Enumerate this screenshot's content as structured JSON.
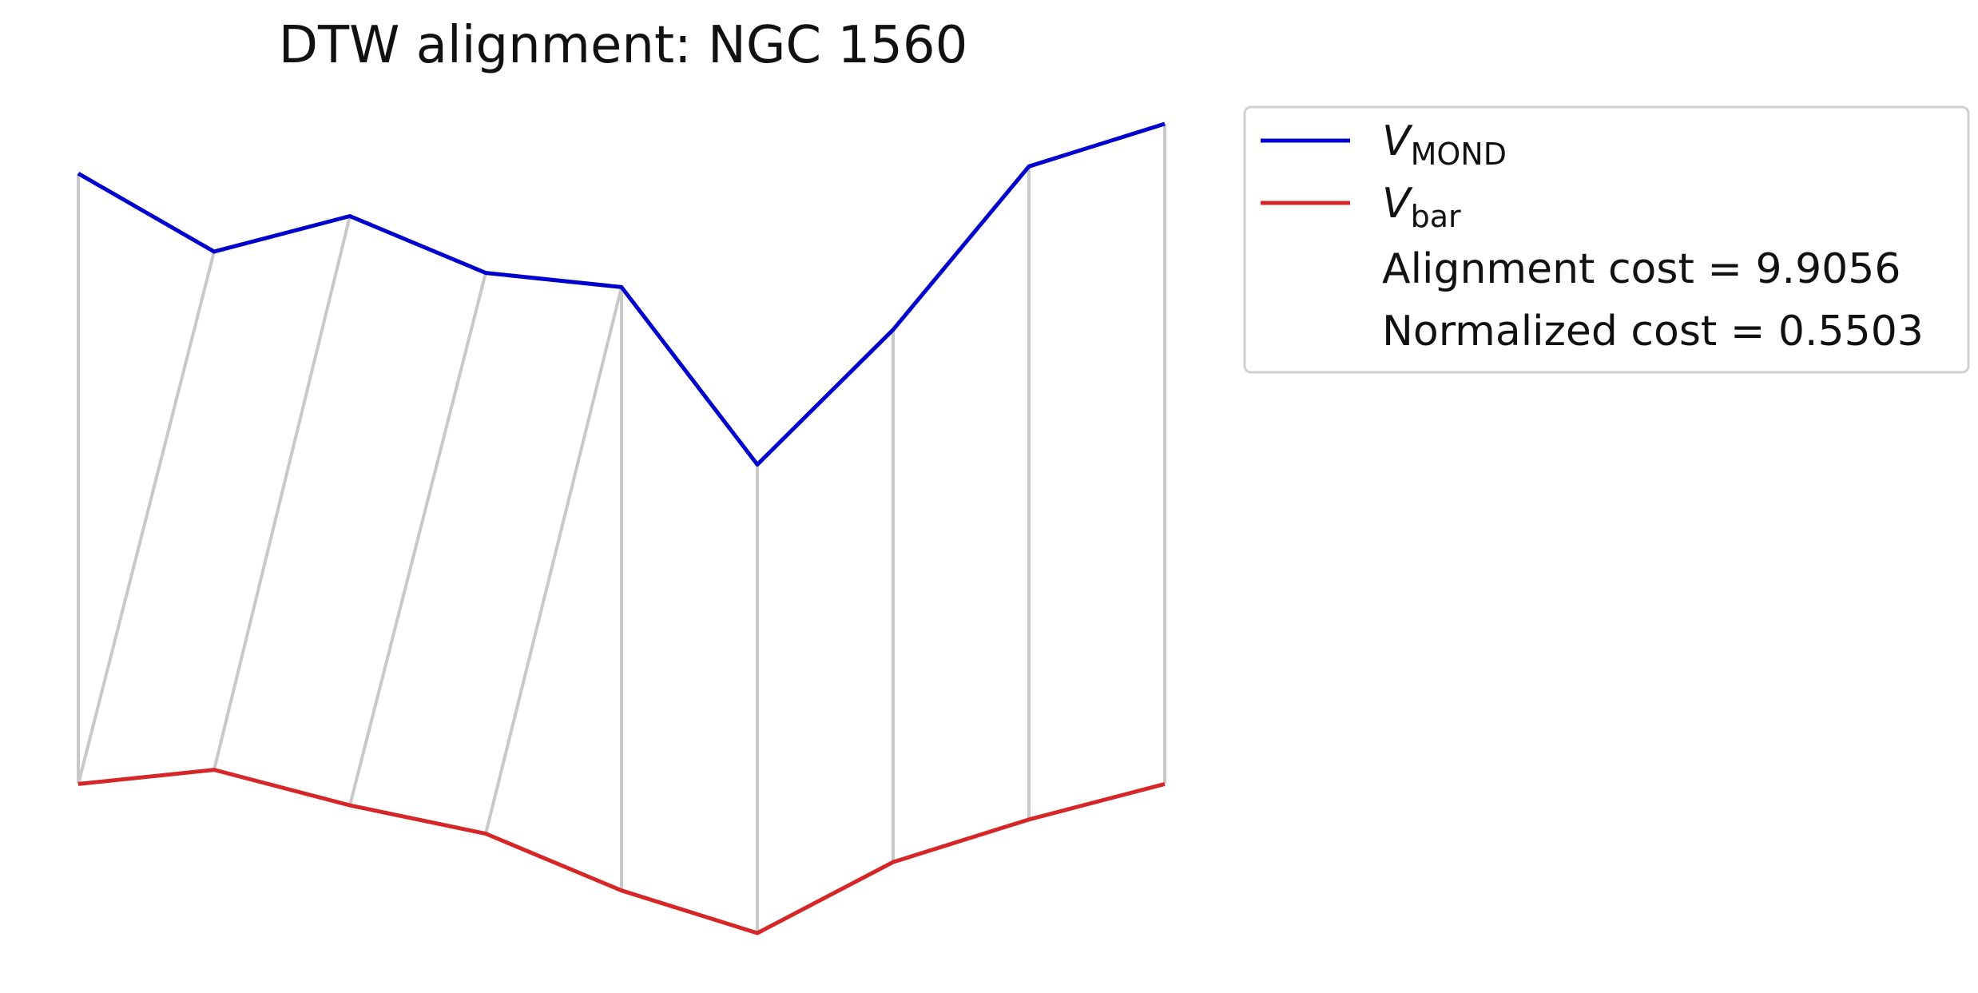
{
  "chart_data": {
    "type": "line",
    "title": "DTW alignment: NGC 1560",
    "xlabel": "",
    "ylabel": "",
    "axes_visible": false,
    "grid": false,
    "legend_position": "upper-right-outside",
    "x": [
      0,
      1,
      2,
      3,
      4,
      5,
      6,
      7,
      8
    ],
    "series": [
      {
        "name": "V_MOND",
        "label_main": "V",
        "label_sub": "MOND",
        "color": "#0000cc",
        "values": [
          0.86,
          0.75,
          0.8,
          0.72,
          0.7,
          0.45,
          0.64,
          0.87,
          0.93
        ]
      },
      {
        "name": "V_bar",
        "label_main": "V",
        "label_sub": "bar",
        "color": "#d62728",
        "values": [
          0.0,
          0.02,
          -0.03,
          -0.07,
          -0.15,
          -0.21,
          -0.11,
          -0.05,
          0.0
        ]
      }
    ],
    "alignment_pairs": [
      [
        0,
        0
      ],
      [
        1,
        0
      ],
      [
        2,
        1
      ],
      [
        3,
        2
      ],
      [
        4,
        3
      ],
      [
        4,
        4
      ],
      [
        5,
        5
      ],
      [
        6,
        6
      ],
      [
        7,
        7
      ],
      [
        8,
        8
      ]
    ],
    "alignment_color": "#c8c8c8",
    "annotations": [
      "Alignment cost = 9.9056",
      "Normalized cost = 0.5503"
    ]
  }
}
